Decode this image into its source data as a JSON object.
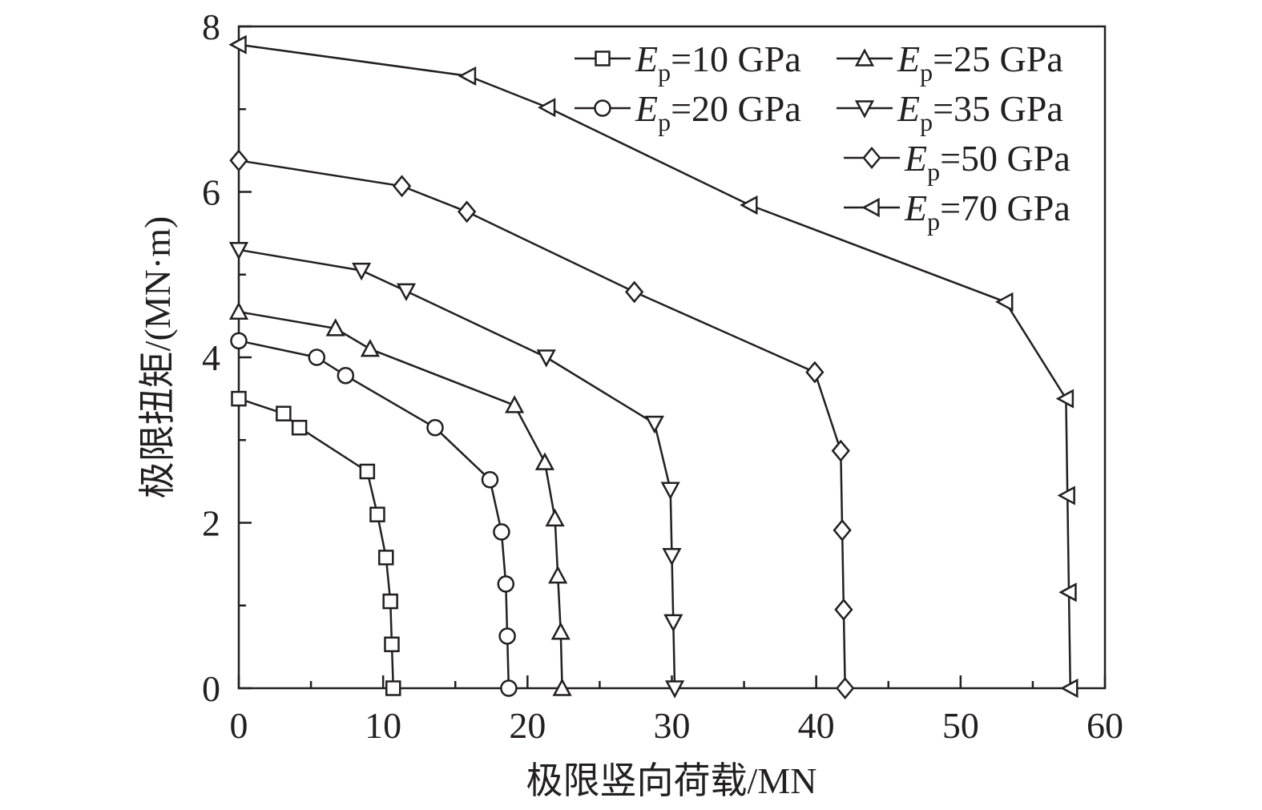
{
  "chart_data": {
    "type": "line",
    "xlabel": "极限竖向荷载/MN",
    "ylabel": "极限扭矩/(MN·m)",
    "xlim": [
      0,
      60
    ],
    "ylim": [
      0,
      8
    ],
    "xticks": [
      0,
      10,
      20,
      30,
      40,
      50,
      60
    ],
    "yticks": [
      0,
      2,
      4,
      6,
      8
    ],
    "grid": false,
    "legend_position": "top-right",
    "legend_symbol": "E",
    "legend_subscript": "p",
    "series": [
      {
        "name": "=10 GPa",
        "marker": "square",
        "x": [
          0,
          3.1,
          4.2,
          8.9,
          9.6,
          10.2,
          10.5,
          10.6,
          10.7
        ],
        "y": [
          3.5,
          3.32,
          3.15,
          2.62,
          2.1,
          1.58,
          1.05,
          0.53,
          0
        ]
      },
      {
        "name": "=20 GPa",
        "marker": "circle",
        "x": [
          0,
          5.4,
          7.4,
          13.6,
          17.4,
          18.2,
          18.5,
          18.6,
          18.7
        ],
        "y": [
          4.2,
          4.0,
          3.78,
          3.15,
          2.52,
          1.89,
          1.26,
          0.63,
          0
        ]
      },
      {
        "name": "=25 GPa",
        "marker": "triangle-up",
        "x": [
          0,
          6.7,
          9.1,
          19.1,
          21.2,
          21.9,
          22.1,
          22.3,
          22.4
        ],
        "y": [
          4.55,
          4.35,
          4.1,
          3.42,
          2.73,
          2.05,
          1.36,
          0.68,
          0
        ]
      },
      {
        "name": "=35 GPa",
        "marker": "triangle-down",
        "x": [
          0,
          8.5,
          11.6,
          21.3,
          28.8,
          29.9,
          30.0,
          30.1,
          30.2
        ],
        "y": [
          5.3,
          5.05,
          4.8,
          4.0,
          3.2,
          2.4,
          1.6,
          0.8,
          0
        ]
      },
      {
        "name": "=50 GPa",
        "marker": "diamond",
        "x": [
          0,
          11.3,
          15.8,
          27.4,
          39.9,
          41.7,
          41.8,
          41.9,
          42.0
        ],
        "y": [
          6.38,
          6.07,
          5.76,
          4.79,
          3.82,
          2.87,
          1.91,
          0.95,
          0
        ]
      },
      {
        "name": "=70 GPa",
        "marker": "triangle-left",
        "x": [
          0,
          15.9,
          21.4,
          35.4,
          53.1,
          57.3,
          57.4,
          57.5,
          57.6
        ],
        "y": [
          7.78,
          7.4,
          7.02,
          5.84,
          4.67,
          3.5,
          2.33,
          1.16,
          0
        ]
      }
    ]
  }
}
